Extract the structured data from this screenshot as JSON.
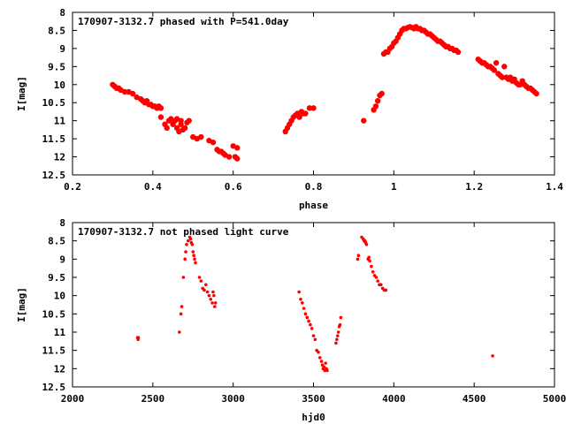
{
  "chart_data": [
    {
      "type": "scatter",
      "title": "170907-3132.7 phased with P=541.0day",
      "xlabel": "phase",
      "ylabel": "I[mag]",
      "xlim": [
        0.2,
        1.4
      ],
      "ylim": [
        12.5,
        8
      ],
      "y_inverted": true,
      "xticks": [
        "0.2",
        "0.4",
        "0.6",
        "0.8",
        "1",
        "1.2",
        "1.4"
      ],
      "yticks": [
        "8",
        "8.5",
        "9",
        "9.5",
        "10",
        "10.5",
        "11",
        "11.5",
        "12",
        "12.5"
      ],
      "marker_color": "#ff0000",
      "grid": false,
      "series": [
        {
          "x": [
            0.3,
            0.305,
            0.31,
            0.315,
            0.32,
            0.33,
            0.34,
            0.35,
            0.36,
            0.37,
            0.375,
            0.38,
            0.385,
            0.39,
            0.395,
            0.4,
            0.405,
            0.41,
            0.415,
            0.42,
            0.42,
            0.43,
            0.435,
            0.44,
            0.445,
            0.45,
            0.455,
            0.46,
            0.46,
            0.465,
            0.47,
            0.47,
            0.475,
            0.48,
            0.485,
            0.49,
            0.5,
            0.51,
            0.52,
            0.54,
            0.55,
            0.56,
            0.565,
            0.57,
            0.575,
            0.58,
            0.59,
            0.6,
            0.605,
            0.61,
            0.61,
            0.73,
            0.735,
            0.74,
            0.745,
            0.75,
            0.755,
            0.76,
            0.765,
            0.77,
            0.775,
            0.78,
            0.79,
            0.8,
            0.925,
            0.95,
            0.955,
            0.96,
            0.965,
            0.97,
            0.975,
            0.98,
            0.985,
            0.99,
            0.995,
            1.0,
            1.005,
            1.01,
            1.015,
            1.02,
            1.025,
            1.03,
            1.035,
            1.04,
            1.045,
            1.05,
            1.055,
            1.06,
            1.065,
            1.07,
            1.075,
            1.08,
            1.085,
            1.09,
            1.095,
            1.1,
            1.105,
            1.11,
            1.115,
            1.12,
            1.125,
            1.13,
            1.135,
            1.14,
            1.145,
            1.15,
            1.155,
            1.16,
            1.21,
            1.215,
            1.22,
            1.225,
            1.23,
            1.235,
            1.24,
            1.245,
            1.25,
            1.255,
            1.26,
            1.265,
            1.27,
            1.275,
            1.28,
            1.285,
            1.29,
            1.295,
            1.3,
            1.305,
            1.31,
            1.315,
            1.32,
            1.325,
            1.33,
            1.335,
            1.34,
            1.345,
            1.35,
            1.355
          ],
          "y": [
            10,
            10.05,
            10.1,
            10.1,
            10.15,
            10.2,
            10.2,
            10.25,
            10.35,
            10.4,
            10.45,
            10.5,
            10.45,
            10.55,
            10.55,
            10.6,
            10.6,
            10.65,
            10.6,
            10.65,
            10.9,
            11.1,
            11.2,
            11.0,
            10.95,
            11.1,
            11.0,
            11.2,
            10.95,
            11.3,
            11.1,
            11.0,
            11.25,
            11.2,
            11.05,
            11.0,
            11.45,
            11.5,
            11.45,
            11.55,
            11.6,
            11.8,
            11.85,
            11.85,
            11.9,
            11.95,
            12.0,
            11.7,
            12.0,
            12.05,
            11.75,
            11.3,
            11.2,
            11.1,
            11.0,
            10.9,
            10.85,
            10.8,
            10.9,
            10.75,
            10.8,
            10.8,
            10.65,
            10.65,
            11.0,
            10.7,
            10.6,
            10.45,
            10.3,
            10.25,
            9.15,
            9.1,
            9.1,
            9.0,
            8.95,
            8.85,
            8.8,
            8.7,
            8.6,
            8.5,
            8.45,
            8.45,
            8.42,
            8.4,
            8.42,
            8.45,
            8.4,
            8.45,
            8.45,
            8.5,
            8.5,
            8.55,
            8.6,
            8.6,
            8.65,
            8.7,
            8.75,
            8.8,
            8.8,
            8.85,
            8.9,
            8.95,
            8.95,
            9.0,
            9.0,
            9.05,
            9.05,
            9.1,
            9.3,
            9.35,
            9.4,
            9.4,
            9.45,
            9.5,
            9.5,
            9.55,
            9.6,
            9.4,
            9.7,
            9.75,
            9.8,
            9.5,
            9.8,
            9.85,
            9.8,
            9.9,
            9.85,
            9.95,
            10.0,
            10.0,
            9.9,
            10.0,
            10.05,
            10.1,
            10.1,
            10.15,
            10.2,
            10.25
          ]
        }
      ]
    },
    {
      "type": "scatter",
      "title": "170907-3132.7 not phased light curve",
      "xlabel": "hjd0",
      "ylabel": "I[mag]",
      "xlim": [
        2000,
        5000
      ],
      "ylim": [
        12.5,
        8
      ],
      "y_inverted": true,
      "xticks": [
        "2000",
        "2500",
        "3000",
        "3500",
        "4000",
        "4500",
        "5000"
      ],
      "yticks": [
        "8",
        "8.5",
        "9",
        "9.5",
        "10",
        "10.5",
        "11",
        "11.5",
        "12",
        "12.5"
      ],
      "marker_color": "#ff0000",
      "grid": false,
      "series": [
        {
          "x": [
            2405,
            2408,
            2410,
            2665,
            2675,
            2680,
            2690,
            2700,
            2705,
            2710,
            2720,
            2730,
            2735,
            2740,
            2745,
            2750,
            2755,
            2760,
            2765,
            2790,
            2800,
            2810,
            2820,
            2830,
            2840,
            2850,
            2860,
            2870,
            2875,
            2880,
            2885,
            2890,
            3410,
            3420,
            3430,
            3440,
            3450,
            3460,
            3470,
            3480,
            3490,
            3500,
            3510,
            3520,
            3530,
            3540,
            3550,
            3555,
            3560,
            3565,
            3570,
            3575,
            3580,
            3585,
            3640,
            3645,
            3650,
            3655,
            3660,
            3665,
            3670,
            3775,
            3780,
            3800,
            3810,
            3815,
            3820,
            3825,
            3830,
            3840,
            3845,
            3850,
            3860,
            3870,
            3880,
            3890,
            3900,
            3910,
            3920,
            3930,
            3940,
            3950,
            4615
          ],
          "y": [
            11.15,
            11.2,
            11.15,
            11.0,
            10.5,
            10.3,
            9.5,
            9.0,
            8.8,
            8.6,
            8.5,
            8.4,
            8.45,
            8.55,
            8.6,
            8.8,
            8.9,
            9.0,
            9.1,
            9.5,
            9.6,
            9.8,
            9.85,
            9.7,
            9.9,
            10.0,
            10.1,
            10.2,
            9.9,
            10.0,
            10.3,
            10.2,
            9.9,
            10.1,
            10.2,
            10.35,
            10.5,
            10.6,
            10.7,
            10.8,
            10.9,
            11.1,
            11.2,
            11.5,
            11.55,
            11.7,
            11.8,
            11.9,
            12.0,
            11.95,
            12.05,
            11.85,
            12.0,
            12.05,
            11.3,
            11.2,
            11.1,
            11.0,
            10.85,
            10.8,
            10.6,
            9.0,
            8.9,
            8.4,
            8.45,
            8.5,
            8.5,
            8.55,
            8.6,
            9.0,
            8.95,
            9.05,
            9.2,
            9.35,
            9.45,
            9.5,
            9.6,
            9.7,
            9.7,
            9.8,
            9.85,
            9.85,
            11.65
          ]
        }
      ]
    }
  ]
}
